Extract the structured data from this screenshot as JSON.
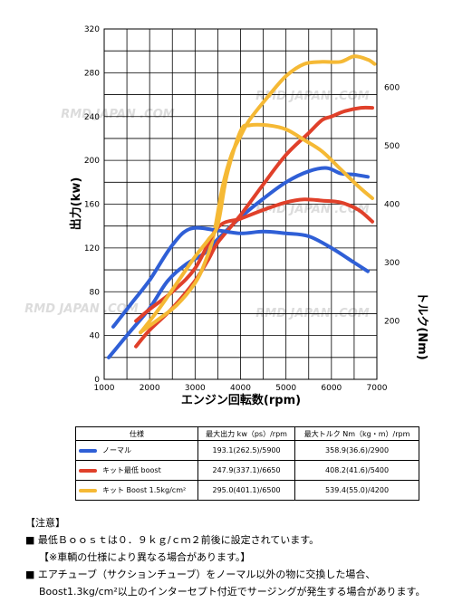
{
  "watermark": "RMD JAPAN .COM",
  "chart_data": {
    "type": "line",
    "x": [
      1000,
      1500,
      2000,
      2500,
      3000,
      3500,
      4000,
      4500,
      5000,
      5500,
      6000,
      6500,
      7000
    ],
    "xlabel": "エンジン回転数(rpm)",
    "ylabel_left": "出力(kw)",
    "ylabel_right": "トルク(Nm)",
    "xlim": [
      1000,
      7000
    ],
    "ylim_left": [
      0,
      320
    ],
    "ylim_right": [
      100,
      700
    ],
    "x_ticks": [
      "1000",
      "2000",
      "3000",
      "4000",
      "5000",
      "6000",
      "7000"
    ],
    "y_ticks_left": [
      "0",
      "40",
      "80",
      "120",
      "160",
      "200",
      "240",
      "280",
      "320"
    ],
    "y_ticks_right": [
      "200",
      "300",
      "400",
      "500",
      "600"
    ],
    "grid": true,
    "colors": {
      "blue": "#2f5fd6",
      "red": "#e0402a",
      "yellow": "#f5b935"
    },
    "series": [
      {
        "color": "blue",
        "axis": "left",
        "x": [
          1100,
          1300,
          1600,
          2000,
          2400,
          2800,
          3200,
          3500,
          4000,
          4500,
          5000,
          5500,
          5900,
          6200,
          6500,
          6800
        ],
        "values": [
          20,
          30,
          45,
          65,
          90,
          105,
          115,
          128,
          148,
          165,
          180,
          190,
          193,
          188,
          187,
          185
        ]
      },
      {
        "color": "red",
        "axis": "left",
        "x": [
          1700,
          2000,
          2500,
          3000,
          3300,
          3500,
          4000,
          4500,
          5000,
          5500,
          5800,
          6000,
          6300,
          6650,
          6900
        ],
        "values": [
          30,
          45,
          65,
          90,
          110,
          125,
          150,
          178,
          205,
          225,
          237,
          240,
          245,
          248,
          248
        ]
      },
      {
        "color": "yellow",
        "axis": "left",
        "x": [
          1800,
          2200,
          2600,
          3000,
          3200,
          3400,
          3600,
          3800,
          4000,
          4200,
          4600,
          5000,
          5400,
          5800,
          6200,
          6500,
          6800,
          6950
        ],
        "values": [
          43,
          55,
          68,
          88,
          105,
          130,
          175,
          205,
          222,
          237,
          258,
          277,
          288,
          290,
          290,
          295,
          292,
          288
        ]
      },
      {
        "color": "blue",
        "axis": "right",
        "x": [
          1200,
          1600,
          2000,
          2500,
          2900,
          3500,
          4000,
          4500,
          5000,
          5500,
          6000,
          6500,
          6800
        ],
        "values": [
          190,
          230,
          270,
          330,
          358,
          355,
          350,
          353,
          350,
          345,
          325,
          300,
          285
        ]
      },
      {
        "color": "red",
        "axis": "right",
        "x": [
          1700,
          2000,
          2500,
          3000,
          3500,
          4000,
          4500,
          5000,
          5400,
          5800,
          6200,
          6600,
          6900
        ],
        "values": [
          200,
          220,
          250,
          290,
          360,
          375,
          390,
          403,
          408,
          406,
          403,
          390,
          370
        ]
      },
      {
        "color": "yellow",
        "axis": "right",
        "x": [
          1800,
          2200,
          2600,
          3000,
          3300,
          3500,
          3700,
          4000,
          4200,
          4600,
          5000,
          5400,
          5800,
          6200,
          6600,
          6900
        ],
        "values": [
          180,
          220,
          265,
          310,
          340,
          365,
          450,
          525,
          535,
          535,
          528,
          510,
          490,
          460,
          430,
          410
        ]
      }
    ]
  },
  "table": {
    "headers": [
      "仕様",
      "最大出力 kw（ps）/rpm",
      "最大トルク Nm（kg・m）/rpm"
    ],
    "rows": [
      {
        "color": "blue",
        "name": "ノーマル",
        "power": "193.1(262.5)/5900",
        "torque": "358.9(36.6)/2900"
      },
      {
        "color": "red",
        "name": "キット最低 boost",
        "power": "247.9(337.1)/6650",
        "torque": "408.2(41.6)/5400"
      },
      {
        "color": "yellow",
        "name": "キット Boost 1.5kg/cm²",
        "power": "295.0(401.1)/6500",
        "torque": "539.4(55.0)/4200"
      }
    ]
  },
  "notes": {
    "heading": "【注意】",
    "line1": "■ 最低Ｂｏｏｓｔは０．９ｋｇ/ｃｍ２前後に設定されています。",
    "line2": "【※車輌の仕様により異なる場合があります。】",
    "line3": "■ エアチューブ（サクションチューブ）をノーマル以外の物に交換した場合、",
    "line4": "Boost1.3kg/cm²以上のインターセプト付近でサージングが発生する場合があります。"
  }
}
